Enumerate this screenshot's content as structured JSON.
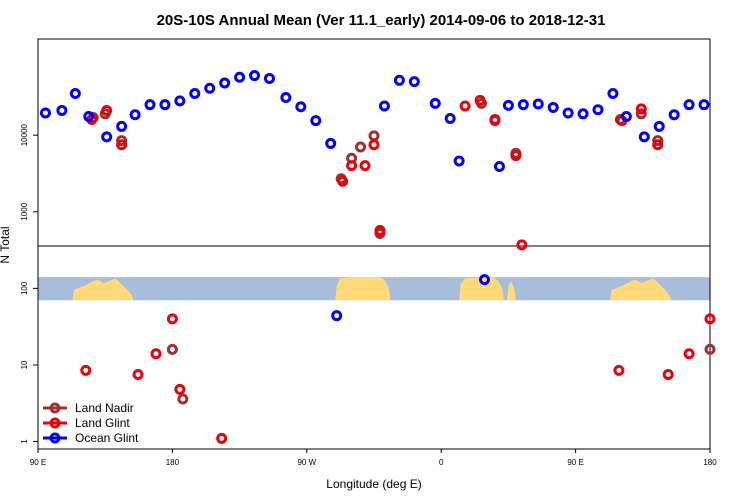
{
  "chart_data": {
    "type": "scatter",
    "title": "20S-10S Annual Mean (Ver 11.1_early)   2014-09-06 to 2018-12-31",
    "xlabel": "Longitude (deg E)",
    "ylabel": "N Total",
    "y_scale": "log",
    "ylim": [
      0.8,
      180000
    ],
    "x_ticks": [
      {
        "value": 90,
        "label": "90 E"
      },
      {
        "value": 180,
        "label": "180"
      },
      {
        "value": 270,
        "label": "90 W"
      },
      {
        "value": 360,
        "label": "0"
      },
      {
        "value": 450,
        "label": "90 E"
      },
      {
        "value": 540,
        "label": "180"
      }
    ],
    "y_ticks": [
      {
        "value": 1,
        "label": "1"
      },
      {
        "value": 10,
        "label": "10"
      },
      {
        "value": 100,
        "label": "100"
      },
      {
        "value": 1000,
        "label": "1000"
      },
      {
        "value": 10000,
        "label": "10000"
      }
    ],
    "xlim": [
      90,
      540
    ],
    "land_mask_strip": {
      "y_range": [
        70,
        140
      ],
      "ocean_color": "#a6bddb",
      "land_color": "#ffd97a"
    },
    "legend_position": "bottom-left",
    "series": [
      {
        "name": "Land Nadir",
        "color": "#a0302f",
        "points": [
          [
            127,
            17000
          ],
          [
            135,
            19000
          ],
          [
            146,
            8500
          ],
          [
            180,
            16
          ],
          [
            187,
            3.6
          ],
          [
            293,
            2700
          ],
          [
            300,
            5000
          ],
          [
            306,
            7000
          ],
          [
            315,
            9800
          ],
          [
            319,
            520
          ],
          [
            387,
            26000
          ],
          [
            396,
            15500
          ],
          [
            410,
            5800
          ],
          [
            480,
            16000
          ],
          [
            494,
            19000
          ],
          [
            505,
            8500
          ],
          [
            540,
            16
          ]
        ]
      },
      {
        "name": "Land Glint",
        "color": "#e8000b",
        "points": [
          [
            122,
            8.5
          ],
          [
            126,
            16000
          ],
          [
            136,
            21000
          ],
          [
            146,
            7500
          ],
          [
            157,
            7.5
          ],
          [
            169,
            14
          ],
          [
            180,
            40
          ],
          [
            185,
            4.8
          ],
          [
            213,
            1.1
          ],
          [
            294,
            2500
          ],
          [
            300,
            4000
          ],
          [
            309,
            4000
          ],
          [
            315,
            7500
          ],
          [
            319,
            570
          ],
          [
            376,
            24000
          ],
          [
            386,
            28500
          ],
          [
            396,
            16000
          ],
          [
            410,
            5400
          ],
          [
            414,
            370
          ],
          [
            479,
            8.5
          ],
          [
            481,
            15500
          ],
          [
            494,
            22000
          ],
          [
            505,
            7500
          ],
          [
            512,
            7.5
          ],
          [
            526,
            14
          ],
          [
            540,
            40
          ]
        ]
      },
      {
        "name": "Ocean Glint",
        "color": "#0000ff",
        "points": [
          [
            95,
            19500
          ],
          [
            106,
            21000
          ],
          [
            115,
            35000
          ],
          [
            124,
            17500
          ],
          [
            136,
            9500
          ],
          [
            146,
            13000
          ],
          [
            155,
            18500
          ],
          [
            165,
            25000
          ],
          [
            175,
            25000
          ],
          [
            185,
            28000
          ],
          [
            195,
            35000
          ],
          [
            205,
            41000
          ],
          [
            215,
            48000
          ],
          [
            225,
            57000
          ],
          [
            235,
            60000
          ],
          [
            245,
            55000
          ],
          [
            256,
            31000
          ],
          [
            266,
            23500
          ],
          [
            276,
            15500
          ],
          [
            286,
            7800
          ],
          [
            290,
            44
          ],
          [
            322,
            24000
          ],
          [
            332,
            52000
          ],
          [
            342,
            50000
          ],
          [
            356,
            26000
          ],
          [
            366,
            16500
          ],
          [
            372,
            4600
          ],
          [
            389,
            130
          ],
          [
            399,
            3900
          ],
          [
            405,
            24500
          ],
          [
            415,
            25000
          ],
          [
            425,
            25500
          ],
          [
            435,
            23000
          ],
          [
            445,
            19500
          ],
          [
            455,
            19000
          ],
          [
            465,
            21500
          ],
          [
            475,
            35000
          ],
          [
            484,
            17500
          ],
          [
            496,
            9500
          ],
          [
            506,
            13000
          ],
          [
            516,
            18500
          ],
          [
            526,
            25000
          ],
          [
            536,
            25000
          ]
        ]
      }
    ]
  }
}
